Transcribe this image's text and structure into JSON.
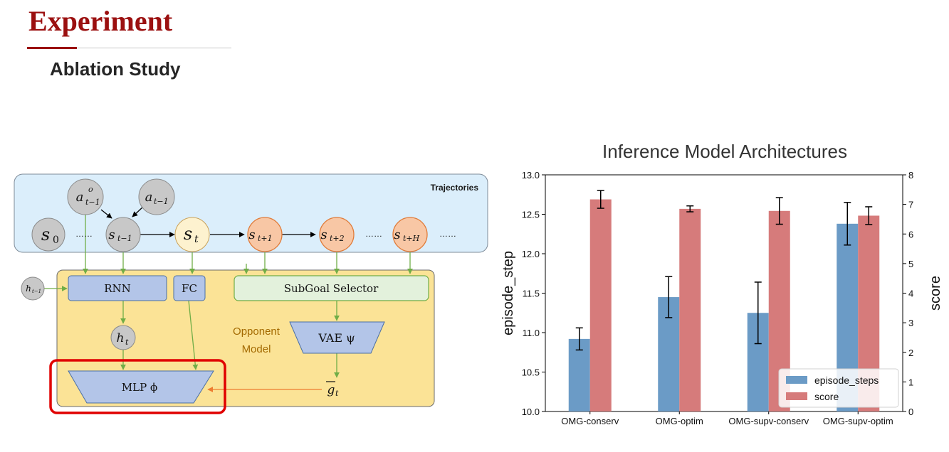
{
  "slide": {
    "title": "Experiment",
    "subtitle": "Ablation Study"
  },
  "diagram": {
    "trajectories_label": "Trajectories",
    "nodes": {
      "a_o_base": "a",
      "a_o_sup": "o",
      "a_o_sub": "t−1",
      "a_base": "a",
      "a_sub": "t−1",
      "s0_base": "s",
      "s0_sub": "0",
      "s_tm1_base": "s",
      "s_tm1_sub": "t−1",
      "s_t_base": "s",
      "s_t_sub": "t",
      "s_tp1_base": "s",
      "s_tp1_sub": "t+1",
      "s_tp2_base": "s",
      "s_tp2_sub": "t+2",
      "s_tpH_base": "s",
      "s_tpH_sub": "t+H",
      "h_tm1_base": "h",
      "h_tm1_sub": "t−1",
      "h_t_base": "h",
      "h_t_sub": "t"
    },
    "dots": "……",
    "blocks": {
      "rnn": "RNN",
      "fc": "FC",
      "subgoal": "SubGoal Selector",
      "vae": "VAE ψ",
      "mlp": "MLP ϕ"
    },
    "opponent_model_line1": "Opponent",
    "opponent_model_line2": "Model",
    "g_bar_base": "g",
    "g_bar_sub": "t",
    "colors": {
      "trajectory_bg": "#dbeefb",
      "model_bg": "#fbe396",
      "block_blue": "#b3c5e8",
      "block_green": "#e3f1dc",
      "gray_node": "#c8c8c8",
      "yellow_node": "#fdf2cf",
      "orange_node": "#f8c7a5",
      "green_arrow": "#70ad47",
      "orange_arrow": "#ed7d31",
      "highlight": "#e00000"
    }
  },
  "chart_data": {
    "type": "bar",
    "title": "Inference Model Architectures",
    "categories": [
      "OMG-conserv",
      "OMG-optim",
      "OMG-supv-conserv",
      "OMG-supv-optim"
    ],
    "ylabel": "episode_step",
    "y2label": "score",
    "ylim": [
      10.0,
      13.0
    ],
    "y2lim": [
      0,
      8
    ],
    "yticks": [
      "10.0",
      "10.5",
      "11.0",
      "11.5",
      "12.0",
      "12.5",
      "13.0"
    ],
    "y2ticks": [
      "0",
      "1",
      "2",
      "3",
      "4",
      "5",
      "6",
      "7",
      "8"
    ],
    "legend_position": "lower-right",
    "series": [
      {
        "name": "episode_steps",
        "axis": "left",
        "color": "#6b9bc6",
        "values": [
          10.92,
          11.45,
          11.25,
          12.38
        ],
        "errors": [
          0.14,
          0.26,
          0.39,
          0.27
        ]
      },
      {
        "name": "score",
        "axis": "right",
        "color": "#d67b7b",
        "values": [
          7.17,
          6.85,
          6.78,
          6.62
        ],
        "errors": [
          0.3,
          0.1,
          0.45,
          0.3
        ]
      }
    ]
  }
}
